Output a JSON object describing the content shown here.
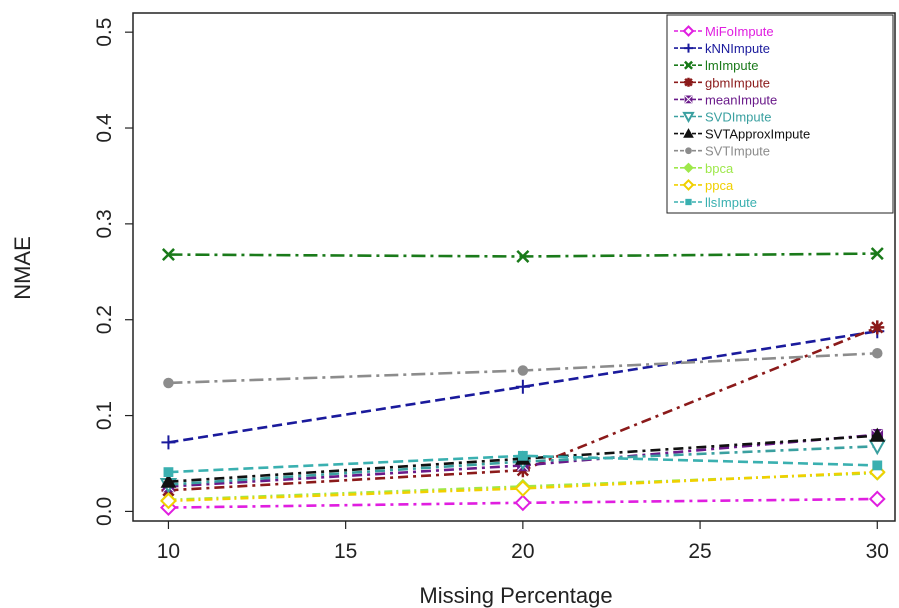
{
  "chart_data": {
    "type": "line",
    "title": "",
    "xlabel": "Missing Percentage",
    "ylabel": "NMAE",
    "x": [
      10,
      20,
      30
    ],
    "xlim": [
      9,
      30.5
    ],
    "ylim": [
      -0.01,
      0.52
    ],
    "x_ticks": [
      "10",
      "15",
      "20",
      "25",
      "30"
    ],
    "y_ticks": [
      "0.0",
      "0.1",
      "0.2",
      "0.3",
      "0.4",
      "0.5"
    ],
    "grid": false,
    "legend_position": "top-right",
    "series": [
      {
        "name": "MiFoImpute",
        "values": [
          0.004,
          0.009,
          0.013
        ],
        "color": "#e01ee0",
        "marker": "diamond",
        "dash": "10,5,3,5"
      },
      {
        "name": "kNNImpute",
        "values": [
          0.072,
          0.13,
          0.188
        ],
        "color": "#1a1a9c",
        "marker": "plus",
        "dash": "10,5"
      },
      {
        "name": "lmImpute",
        "values": [
          0.268,
          0.266,
          0.269
        ],
        "color": "#1a7a1a",
        "marker": "x",
        "dash": "14,5,3,5"
      },
      {
        "name": "gbmImpute",
        "values": [
          0.022,
          0.043,
          0.192
        ],
        "color": "#8b1a1a",
        "marker": "star",
        "dash": "10,5,3,5"
      },
      {
        "name": "meanImpute",
        "values": [
          0.026,
          0.048,
          0.08
        ],
        "color": "#6a1a8a",
        "marker": "square-x",
        "dash": "10,5,3,5"
      },
      {
        "name": "SVDImpute",
        "values": [
          0.028,
          0.052,
          0.068
        ],
        "color": "#3aa0a0",
        "marker": "triangle-down",
        "dash": "10,5,3,5"
      },
      {
        "name": "SVTApproxImpute",
        "values": [
          0.031,
          0.055,
          0.079
        ],
        "color": "#111111",
        "marker": "triangle-up",
        "dash": "10,5,3,5"
      },
      {
        "name": "SVTImpute",
        "values": [
          0.134,
          0.147,
          0.165
        ],
        "color": "#8c8c8c",
        "marker": "dot",
        "dash": "14,5,3,5"
      },
      {
        "name": "bpca",
        "values": [
          0.012,
          0.026,
          0.04
        ],
        "color": "#9ee84a",
        "marker": "diamond-filled",
        "dash": "8,4,2,4"
      },
      {
        "name": "ppca",
        "values": [
          0.011,
          0.024,
          0.041
        ],
        "color": "#f0d000",
        "marker": "diamond-open",
        "dash": "8,4,2,4"
      },
      {
        "name": "llsImpute",
        "values": [
          0.041,
          0.058,
          0.048
        ],
        "color": "#3ab0b0",
        "marker": "square",
        "dash": "10,5"
      }
    ]
  }
}
